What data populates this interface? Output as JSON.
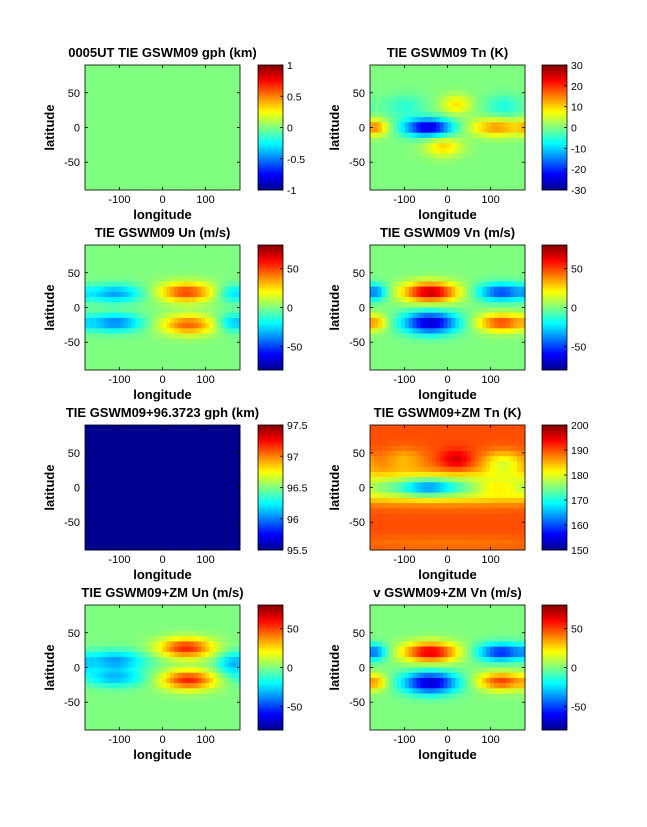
{
  "figure": {
    "colormap": [
      "#00008f",
      "#0000ff",
      "#0080ff",
      "#00ffff",
      "#80ff80",
      "#ffff00",
      "#ff8000",
      "#ff0000",
      "#800000"
    ]
  },
  "chart_data": [
    {
      "type": "heatmap",
      "title": "0005UT TIE GSWM09 gph (km)",
      "xlabel": "longitude",
      "ylabel": "latitude",
      "xlim": [
        -180,
        180
      ],
      "ylim": [
        -90,
        90
      ],
      "xticks": [
        -100,
        0,
        100
      ],
      "yticks": [
        50,
        0,
        -50
      ],
      "xtick_labels": [
        "-100",
        "0",
        "100"
      ],
      "ytick_labels": [
        "50",
        "0",
        "-50"
      ],
      "clim": [
        -1,
        1
      ],
      "cbar_ticks": [
        1,
        0.5,
        0,
        -0.5,
        -1
      ],
      "cbar_tick_labels": [
        "1",
        "0.5",
        "0",
        "-0.5",
        "-1"
      ],
      "field": "uniform",
      "field_value": 0
    },
    {
      "type": "heatmap",
      "title": "TIE GSWM09 Tn (K)",
      "xlabel": "longitude",
      "ylabel": "latitude",
      "xlim": [
        -180,
        180
      ],
      "ylim": [
        -90,
        90
      ],
      "xticks": [
        -100,
        0,
        100
      ],
      "yticks": [
        50,
        0,
        -50
      ],
      "xtick_labels": [
        "-100",
        "0",
        "100"
      ],
      "ytick_labels": [
        "50",
        "0",
        "-50"
      ],
      "clim": [
        -30,
        30
      ],
      "cbar_ticks": [
        30,
        20,
        10,
        0,
        -10,
        -20,
        -30
      ],
      "cbar_tick_labels": [
        "30",
        "20",
        "10",
        "0",
        "-10",
        "-20",
        "-30"
      ],
      "field": "blobs",
      "blobs": [
        {
          "lon": -45,
          "lat": 0,
          "value": -26,
          "slon": 40,
          "slat": 9
        },
        {
          "lon": 115,
          "lat": 0,
          "value": 14,
          "slon": 45,
          "slat": 9
        },
        {
          "lon": -165,
          "lat": 0,
          "value": 12,
          "slon": 20,
          "slat": 8
        },
        {
          "lon": 20,
          "lat": 33,
          "value": 9,
          "slon": 25,
          "slat": 10
        },
        {
          "lon": -10,
          "lat": -28,
          "value": 10,
          "slon": 30,
          "slat": 10
        },
        {
          "lon": 130,
          "lat": 30,
          "value": -6,
          "slon": 30,
          "slat": 12
        },
        {
          "lon": -100,
          "lat": 30,
          "value": -5,
          "slon": 35,
          "slat": 12
        }
      ]
    },
    {
      "type": "heatmap",
      "title": "TIE GSWM09 Un (m/s)",
      "xlabel": "longitude",
      "ylabel": "latitude",
      "xlim": [
        -180,
        180
      ],
      "ylim": [
        -90,
        90
      ],
      "xticks": [
        -100,
        0,
        100
      ],
      "yticks": [
        50,
        0,
        -50
      ],
      "xtick_labels": [
        "-100",
        "0",
        "100"
      ],
      "ytick_labels": [
        "50",
        "0",
        "-50"
      ],
      "clim": [
        -80,
        80
      ],
      "cbar_ticks": [
        50,
        0,
        -50
      ],
      "cbar_tick_labels": [
        "50",
        "0",
        "-50"
      ],
      "field": "blobs",
      "blobs": [
        {
          "lon": 55,
          "lat": 22,
          "value": 50,
          "slon": 45,
          "slat": 10
        },
        {
          "lon": 60,
          "lat": -25,
          "value": 45,
          "slon": 45,
          "slat": 10
        },
        {
          "lon": -110,
          "lat": 20,
          "value": -35,
          "slon": 45,
          "slat": 9
        },
        {
          "lon": -110,
          "lat": -22,
          "value": -40,
          "slon": 45,
          "slat": 9
        },
        {
          "lon": 160,
          "lat": 20,
          "value": -20,
          "slon": 25,
          "slat": 9
        },
        {
          "lon": 160,
          "lat": -22,
          "value": -25,
          "slon": 25,
          "slat": 9
        }
      ]
    },
    {
      "type": "heatmap",
      "title": "TIE GSWM09 Vn (m/s)",
      "xlabel": "longitude",
      "ylabel": "latitude",
      "xlim": [
        -180,
        180
      ],
      "ylim": [
        -90,
        90
      ],
      "xticks": [
        -100,
        0,
        100
      ],
      "yticks": [
        50,
        0,
        -50
      ],
      "xtick_labels": [
        "-100",
        "0",
        "100"
      ],
      "ytick_labels": [
        "50",
        "0",
        "-50"
      ],
      "clim": [
        -80,
        80
      ],
      "cbar_ticks": [
        50,
        0,
        -50
      ],
      "cbar_tick_labels": [
        "50",
        "0",
        "-50"
      ],
      "field": "blobs",
      "blobs": [
        {
          "lon": -40,
          "lat": 22,
          "value": 70,
          "slon": 45,
          "slat": 10
        },
        {
          "lon": -40,
          "lat": -22,
          "value": -70,
          "slon": 45,
          "slat": 11
        },
        {
          "lon": 125,
          "lat": 22,
          "value": -50,
          "slon": 40,
          "slat": 9
        },
        {
          "lon": 125,
          "lat": -22,
          "value": 50,
          "slon": 40,
          "slat": 9
        },
        {
          "lon": -165,
          "lat": 22,
          "value": -30,
          "slon": 18,
          "slat": 8
        },
        {
          "lon": -165,
          "lat": -22,
          "value": 25,
          "slon": 18,
          "slat": 8
        }
      ]
    },
    {
      "type": "heatmap",
      "title": "TIE GSWM09+96.3723 gph (km)",
      "xlabel": "longitude",
      "ylabel": "latitude",
      "xlim": [
        -180,
        180
      ],
      "ylim": [
        -90,
        90
      ],
      "xticks": [
        -100,
        0,
        100
      ],
      "yticks": [
        50,
        0,
        -50
      ],
      "xtick_labels": [
        "-100",
        "0",
        "100"
      ],
      "ytick_labels": [
        "50",
        "0",
        "-50"
      ],
      "clim": [
        95.5,
        97.5
      ],
      "cbar_ticks": [
        97.5,
        97,
        96.5,
        96,
        95.5
      ],
      "cbar_tick_labels": [
        "97.5",
        "97",
        "96.5",
        "96",
        "95.5"
      ],
      "field": "uniform",
      "field_value": 95.5
    },
    {
      "type": "heatmap",
      "title": "TIE GSWM09+ZM Tn (K)",
      "xlabel": "longitude",
      "ylabel": "latitude",
      "xlim": [
        -180,
        180
      ],
      "ylim": [
        -90,
        90
      ],
      "xticks": [
        -100,
        0,
        100
      ],
      "yticks": [
        50,
        0,
        -50
      ],
      "xtick_labels": [
        "-100",
        "0",
        "100"
      ],
      "ytick_labels": [
        "50",
        "0",
        "-50"
      ],
      "clim": [
        150,
        200
      ],
      "cbar_ticks": [
        200,
        190,
        180,
        170,
        160,
        150
      ],
      "cbar_tick_labels": [
        "200",
        "190",
        "180",
        "170",
        "160",
        "150"
      ],
      "field": "blobs",
      "base": 190,
      "blobs": [
        {
          "lon": 0,
          "lat": 0,
          "value": -17,
          "slon": 300,
          "slat": 14
        },
        {
          "lon": -45,
          "lat": 0,
          "value": -10,
          "slon": 40,
          "slat": 8
        },
        {
          "lon": 115,
          "lat": 0,
          "value": 8,
          "slon": 40,
          "slat": 8
        },
        {
          "lon": 20,
          "lat": 40,
          "value": 6,
          "slon": 25,
          "slat": 10
        },
        {
          "lon": 130,
          "lat": 35,
          "value": -10,
          "slon": 35,
          "slat": 12
        },
        {
          "lon": -100,
          "lat": 40,
          "value": -5,
          "slon": 35,
          "slat": 12
        },
        {
          "lon": 0,
          "lat": -80,
          "value": -2,
          "slon": 200,
          "slat": 8
        }
      ]
    },
    {
      "type": "heatmap",
      "title": "TIE GSWM09+ZM Un (m/s)",
      "xlabel": "longitude",
      "ylabel": "latitude",
      "xlim": [
        -180,
        180
      ],
      "ylim": [
        -90,
        90
      ],
      "xticks": [
        -100,
        0,
        100
      ],
      "yticks": [
        50,
        0,
        -50
      ],
      "xtick_labels": [
        "-100",
        "0",
        "100"
      ],
      "ytick_labels": [
        "50",
        "0",
        "-50"
      ],
      "clim": [
        -80,
        80
      ],
      "cbar_ticks": [
        50,
        0,
        -50
      ],
      "cbar_tick_labels": [
        "50",
        "0",
        "-50"
      ],
      "field": "blobs",
      "blobs": [
        {
          "lon": 55,
          "lat": 28,
          "value": 55,
          "slon": 45,
          "slat": 10
        },
        {
          "lon": 60,
          "lat": -18,
          "value": 55,
          "slon": 45,
          "slat": 10
        },
        {
          "lon": -110,
          "lat": 10,
          "value": -35,
          "slon": 50,
          "slat": 10
        },
        {
          "lon": -110,
          "lat": -15,
          "value": -30,
          "slon": 50,
          "slat": 9
        },
        {
          "lon": 160,
          "lat": 5,
          "value": -25,
          "slon": 25,
          "slat": 12
        }
      ]
    },
    {
      "type": "heatmap",
      "title": "v GSWM09+ZM Vn (m/s)",
      "xlabel": "longitude",
      "ylabel": "latitude",
      "xlim": [
        -180,
        180
      ],
      "ylim": [
        -90,
        90
      ],
      "xticks": [
        -100,
        0,
        100
      ],
      "yticks": [
        50,
        0,
        -50
      ],
      "xtick_labels": [
        "-100",
        "0",
        "100"
      ],
      "ytick_labels": [
        "50",
        "0",
        "-50"
      ],
      "clim": [
        -80,
        80
      ],
      "cbar_ticks": [
        50,
        0,
        -50
      ],
      "cbar_tick_labels": [
        "50",
        "0",
        "-50"
      ],
      "field": "blobs",
      "blobs": [
        {
          "lon": -40,
          "lat": 22,
          "value": 65,
          "slon": 45,
          "slat": 10
        },
        {
          "lon": -40,
          "lat": -22,
          "value": -70,
          "slon": 45,
          "slat": 11
        },
        {
          "lon": 125,
          "lat": 22,
          "value": -55,
          "slon": 40,
          "slat": 9
        },
        {
          "lon": 125,
          "lat": -20,
          "value": 50,
          "slon": 40,
          "slat": 9
        },
        {
          "lon": -165,
          "lat": 22,
          "value": -30,
          "slon": 18,
          "slat": 8
        },
        {
          "lon": -165,
          "lat": -22,
          "value": 25,
          "slon": 18,
          "slat": 8
        }
      ]
    }
  ]
}
